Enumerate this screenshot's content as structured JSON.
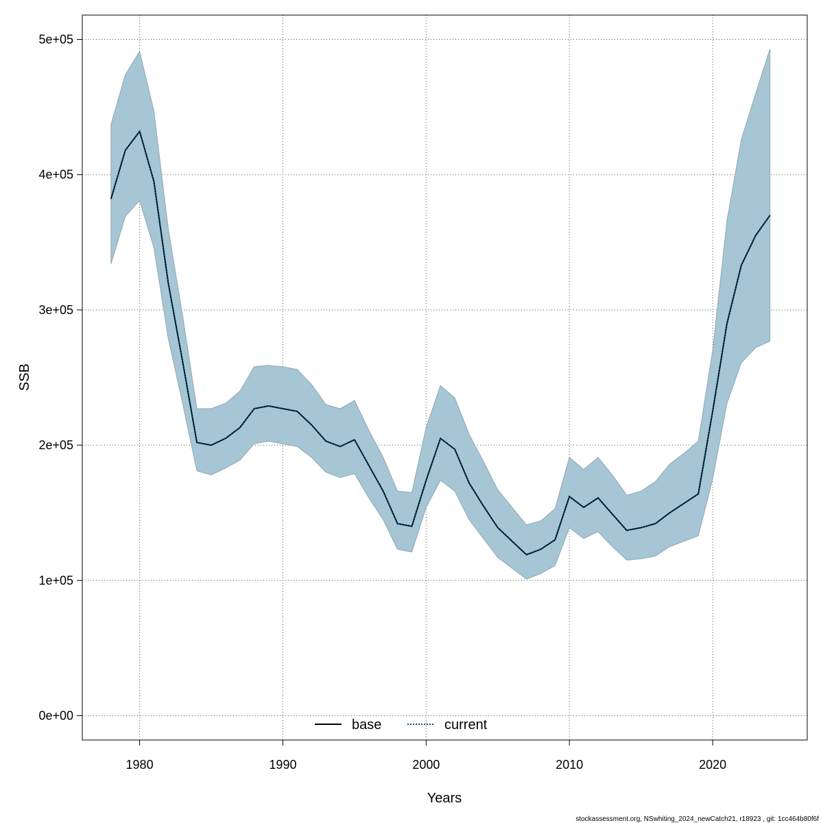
{
  "chart_data": {
    "type": "line",
    "xlabel": "Years",
    "ylabel": "SSB",
    "xlim": [
      1976,
      2026.6
    ],
    "ylim": [
      -18000,
      518000
    ],
    "x_ticks": [
      1980,
      1990,
      2000,
      2010,
      2020
    ],
    "x_tick_labels": [
      "1980",
      "1990",
      "2000",
      "2010",
      "2020"
    ],
    "y_ticks": [
      0,
      100000,
      200000,
      300000,
      400000,
      500000
    ],
    "y_tick_labels": [
      "0e+00",
      "1e+05",
      "2e+05",
      "3e+05",
      "4e+05",
      "5e+05"
    ],
    "grid": true,
    "legend_position": "bottom-center",
    "colors": {
      "band_fill": "#a6c6d6",
      "band_edge": "#8fa7b3",
      "current_line": "#004b6e",
      "base_line": "#000000",
      "grid": "#555555"
    },
    "x": [
      1978,
      1979,
      1980,
      1981,
      1982,
      1983,
      1984,
      1985,
      1986,
      1987,
      1988,
      1989,
      1990,
      1991,
      1992,
      1993,
      1994,
      1995,
      1996,
      1997,
      1998,
      1999,
      2000,
      2001,
      2002,
      2003,
      2004,
      2005,
      2006,
      2007,
      2008,
      2009,
      2010,
      2011,
      2012,
      2013,
      2014,
      2015,
      2016,
      2017,
      2018,
      2019,
      2020,
      2021,
      2022,
      2023,
      2024
    ],
    "series": [
      {
        "name": "base",
        "style": "solid",
        "values": [
          382000,
          418000,
          432000,
          395000,
          320000,
          262000,
          202000,
          200000,
          205000,
          213000,
          227000,
          229000,
          227000,
          225000,
          215000,
          203000,
          199000,
          204000,
          185000,
          166000,
          142000,
          140000,
          174000,
          205000,
          197000,
          172000,
          155000,
          139000,
          129000,
          119000,
          123000,
          130000,
          162000,
          154000,
          161000,
          149000,
          137000,
          139000,
          142000,
          150000,
          157000,
          164000,
          225000,
          290000,
          333000,
          355000,
          370000
        ]
      },
      {
        "name": "current",
        "style": "dotted",
        "values": [
          382000,
          418000,
          432000,
          395000,
          320000,
          262000,
          202000,
          200000,
          205000,
          213000,
          227000,
          229000,
          227000,
          225000,
          215000,
          203000,
          199000,
          204000,
          185000,
          166000,
          142000,
          140000,
          174000,
          205000,
          197000,
          172000,
          155000,
          139000,
          129000,
          119000,
          123000,
          130000,
          162000,
          154000,
          161000,
          149000,
          137000,
          139000,
          142000,
          150000,
          157000,
          164000,
          225000,
          290000,
          333000,
          355000,
          370000
        ]
      }
    ],
    "confidence_band": {
      "lower": [
        334000,
        369000,
        381000,
        346000,
        279000,
        231000,
        181000,
        178000,
        183000,
        189000,
        201000,
        203000,
        201000,
        199000,
        191000,
        180000,
        176000,
        179000,
        161000,
        145000,
        123000,
        121000,
        154000,
        174000,
        166000,
        145000,
        131000,
        117000,
        109000,
        101000,
        105000,
        111000,
        139000,
        131000,
        136000,
        125000,
        115000,
        116000,
        118000,
        125000,
        129000,
        133000,
        175000,
        231000,
        261000,
        272000,
        277000
      ],
      "upper": [
        437000,
        474000,
        491000,
        447000,
        360000,
        296000,
        227000,
        227000,
        231000,
        240000,
        258000,
        259000,
        258000,
        256000,
        245000,
        230000,
        227000,
        233000,
        211000,
        191000,
        166000,
        165000,
        213000,
        244000,
        235000,
        208000,
        188000,
        167000,
        154000,
        141000,
        144000,
        153000,
        191000,
        182000,
        191000,
        178000,
        163000,
        166000,
        173000,
        186000,
        194000,
        203000,
        270000,
        366000,
        426000,
        460000,
        493000
      ]
    }
  },
  "footer": "stockassessment.org, NSwhiting_2024_newCatch21, r18923 , git: 1cc464b80f6f"
}
